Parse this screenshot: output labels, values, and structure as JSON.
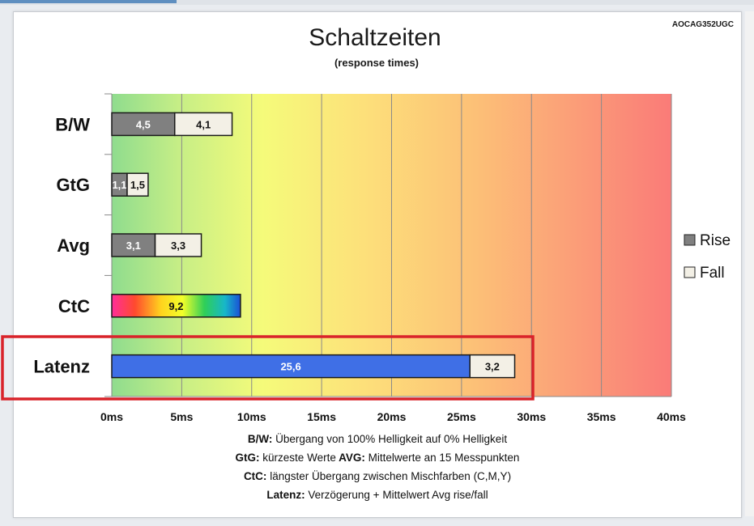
{
  "corner_code": "AOCAG352UGC",
  "legend": {
    "rise_label": "Rise",
    "fall_label": "Fall",
    "rise_color": "#808080",
    "fall_color": "#f3f0e6"
  },
  "notes": [
    {
      "parts": [
        {
          "t": "B/W:",
          "b": true
        },
        {
          "t": " Übergang von 100% Helligkeit auf 0% Helligkeit",
          "b": false
        }
      ]
    },
    {
      "parts": [
        {
          "t": "GtG:",
          "b": true
        },
        {
          "t": " kürzeste  Werte",
          "b": false
        },
        {
          "t": "        AVG:",
          "b": true
        },
        {
          "t": " Mittelwerte  an 15 Messpunkten",
          "b": false
        }
      ]
    },
    {
      "parts": [
        {
          "t": "CtC:",
          "b": true
        },
        {
          "t": " längster Übergang  zwischen Mischfarben  (C,M,Y)",
          "b": false
        }
      ]
    },
    {
      "parts": [
        {
          "t": "Latenz:",
          "b": true
        },
        {
          "t": " Verzögerung  + Mittelwert  Avg rise/fall",
          "b": false
        }
      ]
    }
  ],
  "highlight": {
    "category": "Latenz",
    "color": "#d9232a"
  },
  "chart_data": {
    "type": "bar",
    "orientation": "horizontal",
    "stacked": true,
    "title": "Schaltzeiten",
    "subtitle": "(response times)",
    "categories": [
      "B/W",
      "GtG",
      "Avg",
      "CtC",
      "Latenz"
    ],
    "xlim": [
      0,
      40
    ],
    "xticks": [
      0,
      5,
      10,
      15,
      20,
      25,
      30,
      35,
      40
    ],
    "xtick_labels": [
      "0ms",
      "5ms",
      "10ms",
      "15ms",
      "20ms",
      "25ms",
      "30ms",
      "35ms",
      "40ms"
    ],
    "grid": true,
    "background": "gradient green-yellow-red",
    "legend_position": "right",
    "bars": [
      {
        "category": "B/W",
        "segments": [
          {
            "series": "Rise",
            "value": 4.5,
            "label": "4,5",
            "fill": "#808080",
            "text_color": "#ffffff"
          },
          {
            "series": "Fall",
            "value": 4.1,
            "label": "4,1",
            "fill": "#f3f0e6",
            "text_color": "#111111"
          }
        ]
      },
      {
        "category": "GtG",
        "segments": [
          {
            "series": "Rise",
            "value": 1.1,
            "label": "1,1",
            "fill": "#808080",
            "text_color": "#ffffff"
          },
          {
            "series": "Fall",
            "value": 1.5,
            "label": "1,5",
            "fill": "#f3f0e6",
            "text_color": "#111111"
          }
        ]
      },
      {
        "category": "Avg",
        "segments": [
          {
            "series": "Rise",
            "value": 3.1,
            "label": "3,1",
            "fill": "#808080",
            "text_color": "#ffffff"
          },
          {
            "series": "Fall",
            "value": 3.3,
            "label": "3,3",
            "fill": "#f3f0e6",
            "text_color": "#111111"
          }
        ]
      },
      {
        "category": "CtC",
        "segments": [
          {
            "series": "CtC",
            "value": 9.2,
            "label": "9,2",
            "fill": "rainbow",
            "text_color": "#111111"
          }
        ]
      },
      {
        "category": "Latenz",
        "segments": [
          {
            "series": "Latenz",
            "value": 25.6,
            "label": "25,6",
            "fill": "#3f6fe6",
            "text_color": "#ffffff"
          },
          {
            "series": "Fall",
            "value": 3.2,
            "label": "3,2",
            "fill": "#f3f0e6",
            "text_color": "#111111"
          }
        ]
      }
    ]
  }
}
